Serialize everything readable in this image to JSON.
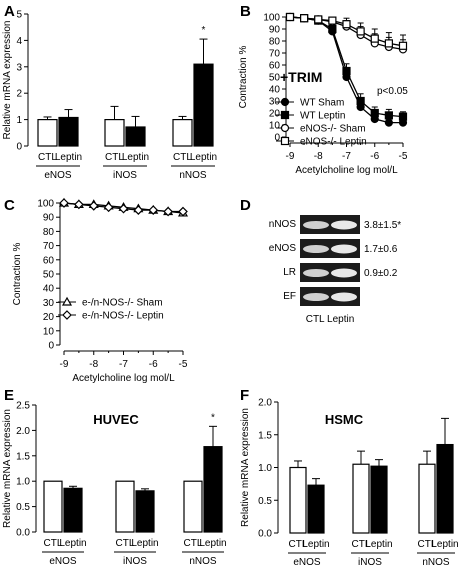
{
  "chart_data": [
    {
      "panel": "A",
      "type": "bar",
      "ylabel": "Relative mRNA expression",
      "ylim": [
        0,
        5
      ],
      "yticks": [
        "0",
        "1",
        "2",
        "3",
        "4",
        "5"
      ],
      "groups": [
        "eNOS",
        "iNOS",
        "nNOS"
      ],
      "bar_labels": [
        "CTL",
        "Leptin"
      ],
      "series": [
        {
          "name": "CTL",
          "values": [
            1.0,
            1.0,
            1.0
          ],
          "errors": [
            0.1,
            0.5,
            0.12
          ]
        },
        {
          "name": "Leptin",
          "values": [
            1.08,
            0.72,
            3.1
          ],
          "errors": [
            0.3,
            0.4,
            0.95
          ]
        }
      ],
      "annotations": [
        "*"
      ]
    },
    {
      "panel": "B",
      "type": "line",
      "xlabel": "Acetylcholine log mol/L",
      "ylabel": "Contraction %",
      "xlim": [
        -9,
        -5
      ],
      "ylim": [
        0,
        100
      ],
      "xticks": [
        "-9",
        "-8",
        "-7",
        "-6",
        "-5"
      ],
      "yticks": [
        "0",
        "10",
        "20",
        "30",
        "40",
        "50",
        "60",
        "70",
        "80",
        "90",
        "100"
      ],
      "x": [
        -9,
        -8.5,
        -8,
        -7.5,
        -7,
        -6.5,
        -6,
        -5.5,
        -5
      ],
      "inset_title": "+TRIM",
      "pvalue": "p<0.05",
      "series": [
        {
          "name": "WT  Sham",
          "values": [
            100,
            99,
            97,
            88,
            50,
            25,
            15,
            12,
            12
          ],
          "errors": [
            0,
            1,
            2,
            4,
            6,
            6,
            5,
            4,
            4
          ]
        },
        {
          "name": "WT  Leptin",
          "values": [
            100,
            99,
            97,
            90,
            55,
            30,
            20,
            18,
            17
          ],
          "errors": [
            0,
            1,
            2,
            4,
            6,
            6,
            5,
            5,
            4
          ]
        },
        {
          "name": "eNOS-/-  Sham",
          "values": [
            100,
            99,
            98,
            96,
            92,
            85,
            78,
            75,
            73
          ],
          "errors": [
            0,
            1,
            2,
            3,
            5,
            7,
            8,
            8,
            8
          ]
        },
        {
          "name": "eNOS-/-  Leptin",
          "values": [
            100,
            99,
            98,
            97,
            94,
            88,
            82,
            78,
            76
          ],
          "errors": [
            0,
            1,
            2,
            3,
            5,
            7,
            8,
            9,
            9
          ]
        }
      ]
    },
    {
      "panel": "C",
      "type": "line",
      "xlabel": "Acetylcholine log mol/L",
      "ylabel": "Contraction %",
      "xlim": [
        -9,
        -5
      ],
      "ylim": [
        0,
        100
      ],
      "xticks": [
        "-9",
        "-8",
        "-7",
        "-6",
        "-5"
      ],
      "yticks": [
        "0",
        "10",
        "20",
        "30",
        "40",
        "50",
        "60",
        "70",
        "80",
        "90",
        "100"
      ],
      "x": [
        -9,
        -8.5,
        -8,
        -7.5,
        -7,
        -6.5,
        -6,
        -5.5,
        -5
      ],
      "series": [
        {
          "name": "e-/n-NOS-/- Sham",
          "values": [
            100,
            99,
            99,
            98,
            97,
            96,
            95,
            94,
            93
          ]
        },
        {
          "name": "e-/n-NOS-/- Leptin",
          "values": [
            100,
            99,
            98,
            97,
            96,
            95,
            95,
            94,
            94
          ]
        }
      ]
    },
    {
      "panel": "D",
      "type": "table",
      "rows": [
        {
          "gene": "nNOS",
          "value": "3.8±1.5*"
        },
        {
          "gene": "eNOS",
          "value": "1.7±0.6"
        },
        {
          "gene": "LR",
          "value": "0.9±0.2"
        },
        {
          "gene": "EF",
          "value": ""
        }
      ],
      "lane_labels": "CTL Leptin"
    },
    {
      "panel": "E",
      "type": "bar",
      "title": "HUVEC",
      "ylabel": "Relative mRNA expression",
      "ylim": [
        0,
        2.5
      ],
      "yticks": [
        "0.0",
        "0.5",
        "1.0",
        "1.5",
        "2.0",
        "2.5"
      ],
      "groups": [
        "eNOS",
        "iNOS",
        "nNOS"
      ],
      "bar_labels": [
        "CTL",
        "Leptin"
      ],
      "series": [
        {
          "name": "CTL",
          "values": [
            1.0,
            1.0,
            1.0
          ],
          "errors": [
            0,
            0,
            0
          ]
        },
        {
          "name": "Leptin",
          "values": [
            0.86,
            0.81,
            1.68
          ],
          "errors": [
            0.04,
            0.04,
            0.4
          ]
        }
      ],
      "annotations": [
        "*"
      ]
    },
    {
      "panel": "F",
      "type": "bar",
      "title": "HSMC",
      "ylabel": "Relative mRNA expression",
      "ylim": [
        0,
        2.0
      ],
      "yticks": [
        "0.0",
        "0.5",
        "1.0",
        "1.5",
        "2.0"
      ],
      "groups": [
        "eNOS",
        "iNOS",
        "nNOS"
      ],
      "bar_labels": [
        "CTL",
        "Leptin"
      ],
      "series": [
        {
          "name": "CTL",
          "values": [
            1.0,
            1.05,
            1.05
          ],
          "errors": [
            0.1,
            0.2,
            0.2
          ]
        },
        {
          "name": "Leptin",
          "values": [
            0.73,
            1.02,
            1.35
          ],
          "errors": [
            0.1,
            0.1,
            0.4
          ]
        }
      ]
    }
  ]
}
